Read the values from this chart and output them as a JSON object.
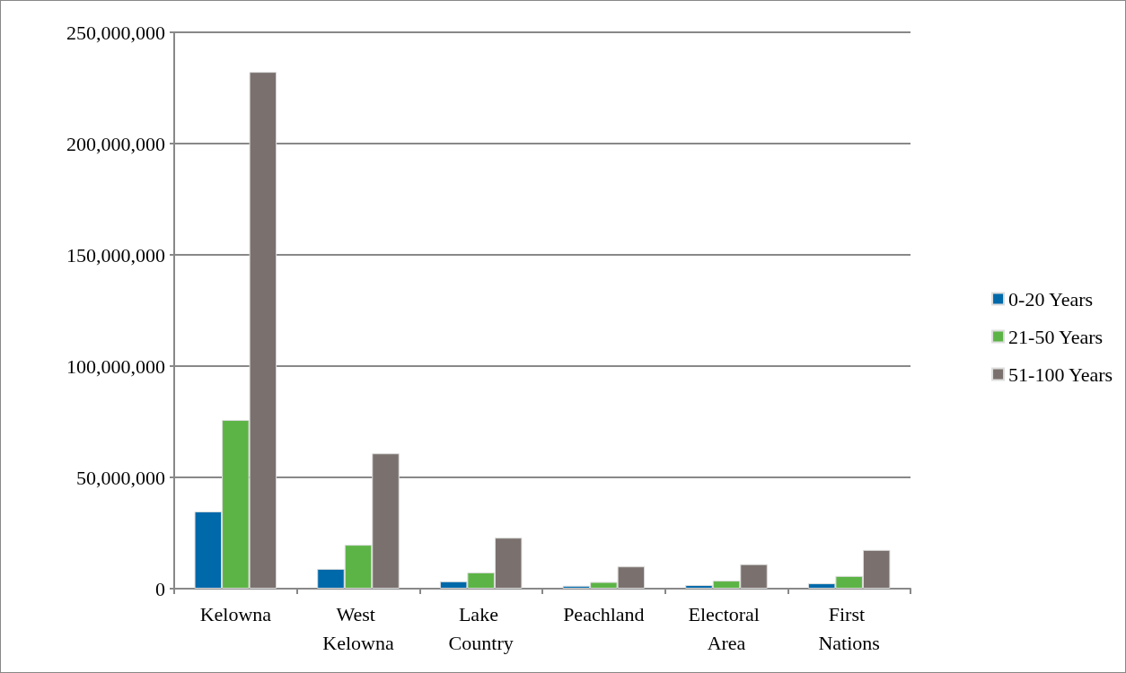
{
  "chart_data": {
    "type": "bar",
    "categories": [
      "Kelowna",
      "West Kelowna",
      "Lake Country",
      "Peachland",
      "Electoral Area",
      "First Nations"
    ],
    "series": [
      {
        "name": "0-20 Years",
        "color": "#0069aa",
        "values": [
          34700000,
          8900000,
          3300000,
          1300000,
          1600000,
          2400000
        ]
      },
      {
        "name": "21-50 Years",
        "color": "#5db446",
        "values": [
          75800000,
          19700000,
          7300000,
          3000000,
          3600000,
          5700000
        ]
      },
      {
        "name": "51-100 Years",
        "color": "#7a706d",
        "values": [
          232200000,
          60800000,
          22900000,
          10000000,
          11000000,
          17400000
        ]
      }
    ],
    "ylim": [
      0,
      250000000
    ],
    "yticks": [
      0,
      {
        "value": 50000000,
        "label": "50,000,000"
      },
      {
        "value": 100000000,
        "label": "100,000,000"
      },
      {
        "value": 150000000,
        "label": "150,000,000"
      },
      {
        "value": 200000000,
        "label": "200,000,000"
      },
      {
        "value": 250000000,
        "label": "250,000,000"
      }
    ],
    "grid": "y",
    "legend": "right"
  }
}
